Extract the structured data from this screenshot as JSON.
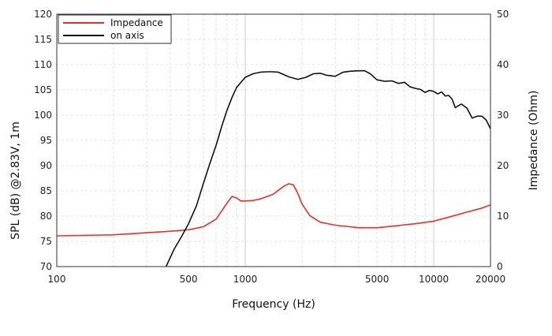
{
  "chart_data": {
    "type": "line",
    "xlabel": "Frequency (Hz)",
    "ylabel": "SPL (dB) @2.83V, 1m",
    "y2label": "Impedance (Ohm)",
    "x_scale": "log",
    "xlim": [
      100,
      20000
    ],
    "ylim": [
      70,
      120
    ],
    "y2lim": [
      0,
      50
    ],
    "x_ticks": [
      "100",
      "500",
      "1000",
      "5000",
      "10000",
      "20000"
    ],
    "y_ticks": [
      "70",
      "75",
      "80",
      "85",
      "90",
      "95",
      "100",
      "105",
      "110",
      "115",
      "120"
    ],
    "y2_ticks": [
      "0",
      "10",
      "20",
      "30",
      "40",
      "50"
    ],
    "grid": true,
    "legend_position": "top-left",
    "colors": {
      "impedance": "#e8302a",
      "on_axis": "#111111"
    },
    "series": [
      {
        "name": "Impedance",
        "axis": "right",
        "x": [
          100,
          200,
          300,
          400,
          500,
          600,
          700,
          800,
          850,
          900,
          950,
          1000,
          1100,
          1200,
          1400,
          1600,
          1700,
          1800,
          1900,
          2000,
          2200,
          2500,
          3000,
          4000,
          5000,
          6000,
          8000,
          10000,
          12000,
          15000,
          18000,
          20000
        ],
        "values": [
          6.1,
          6.3,
          6.7,
          7.0,
          7.3,
          7.9,
          9.4,
          12.6,
          13.9,
          13.6,
          13.0,
          13.0,
          13.1,
          13.4,
          14.3,
          15.9,
          16.4,
          16.2,
          14.5,
          12.4,
          10.1,
          8.8,
          8.2,
          7.7,
          7.7,
          8.0,
          8.5,
          9.0,
          9.8,
          10.8,
          11.6,
          12.2
        ]
      },
      {
        "name": "on axis",
        "axis": "left",
        "x": [
          380,
          420,
          460,
          500,
          550,
          600,
          650,
          700,
          750,
          800,
          850,
          900,
          1000,
          1100,
          1200,
          1300,
          1400,
          1500,
          1700,
          1900,
          2100,
          2300,
          2500,
          2700,
          3000,
          3300,
          3600,
          4000,
          4300,
          4600,
          5000,
          5500,
          6000,
          6500,
          7000,
          7500,
          8000,
          8500,
          9000,
          9500,
          10000,
          10500,
          11000,
          11500,
          12000,
          12500,
          13000,
          14000,
          15000,
          16000,
          17000,
          18000,
          19000,
          20000
        ],
        "values": [
          70,
          73.5,
          76,
          78.5,
          82,
          86.5,
          90.5,
          94,
          97.8,
          101,
          103.5,
          105.5,
          107.5,
          108.2,
          108.5,
          108.6,
          108.6,
          108.5,
          107.6,
          107.1,
          107.5,
          108.2,
          108.3,
          107.9,
          107.7,
          108.5,
          108.7,
          108.8,
          108.8,
          108.2,
          107.0,
          106.7,
          106.8,
          106.3,
          106.5,
          105.6,
          105.3,
          105.1,
          104.5,
          104.9,
          104.7,
          104.2,
          104.6,
          103.8,
          103.9,
          103.2,
          101.5,
          102.2,
          101.4,
          99.4,
          99.8,
          99.8,
          99.0,
          97.3
        ]
      }
    ]
  }
}
